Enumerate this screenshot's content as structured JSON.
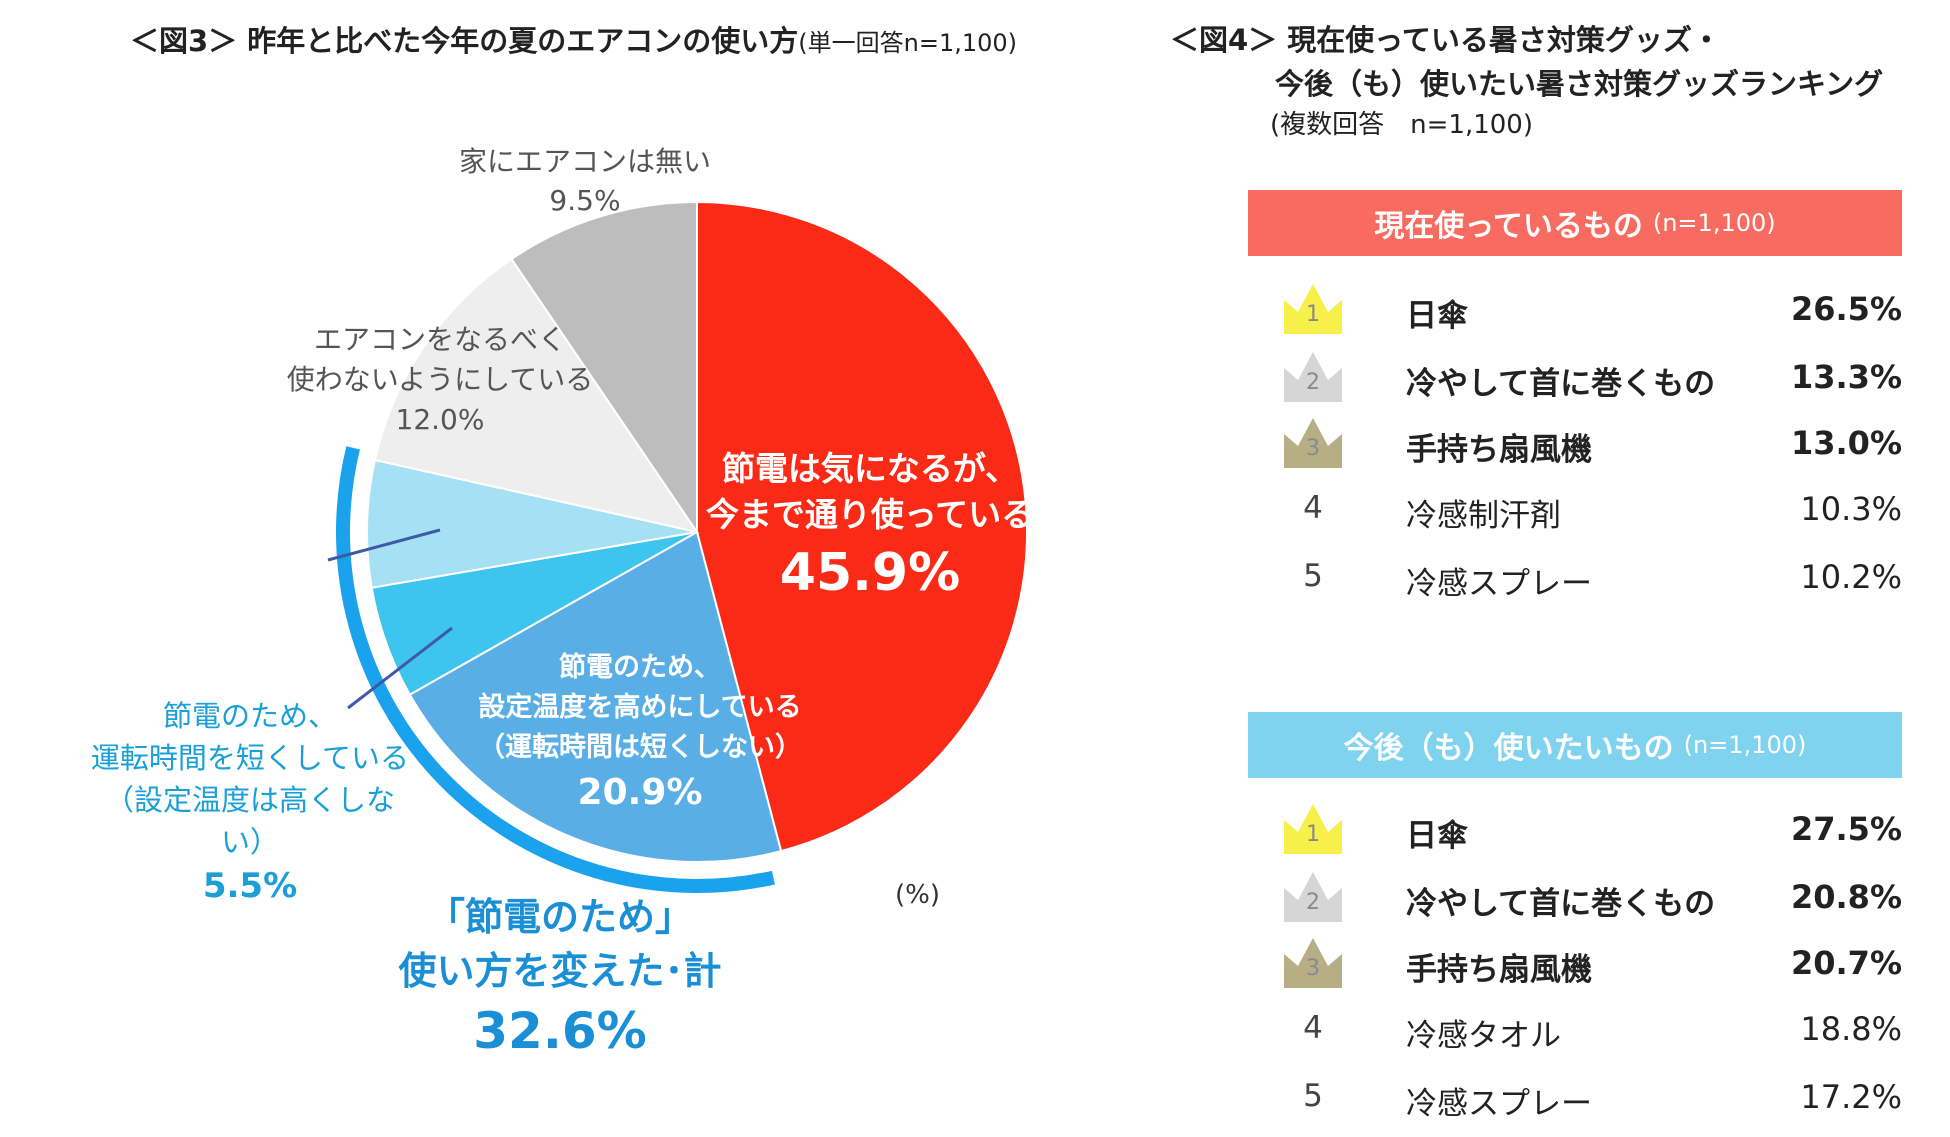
{
  "fig3": {
    "title": "＜図3＞ 昨年と比べた今年の夏のエアコンの使い方",
    "subtitle": "(単一回答n=1,100)",
    "unit": "(%)",
    "total_label_1": "「節電のため」",
    "total_label_2": "使い方を変えた･計",
    "total_value": "32.6%"
  },
  "chart_data": {
    "type": "pie",
    "title": "＜図3＞ 昨年と比べた今年の夏のエアコンの使い方",
    "subtitle": "(単一回答n=1,100)",
    "unit": "%",
    "direction": "clockwise-from-top",
    "slices": [
      {
        "label_lines": [
          "節電は気になるが、",
          "今まで通り使っている"
        ],
        "value": 45.9,
        "value_text": "45.9%",
        "color": "#fa2a16"
      },
      {
        "label_lines": [
          "節電のため、",
          "設定温度を高めにしている",
          "（運転時間は短くしない）"
        ],
        "value": 20.9,
        "value_text": "20.9%",
        "color": "#5aaee6"
      },
      {
        "label_lines": [
          "節電のため、",
          "運転時間を短くしている",
          "（設定温度は高くしない）"
        ],
        "value": 5.5,
        "value_text": "5.5%",
        "color": "#3dc4ef"
      },
      {
        "label_lines": [],
        "value": 6.2,
        "value_text": "",
        "color": "#a6e0f5"
      },
      {
        "label_lines": [
          "エアコンをなるべく",
          "使わないようにしている"
        ],
        "value": 12.0,
        "value_text": "12.0%",
        "color": "#eeeeee"
      },
      {
        "label_lines": [
          "家にエアコンは無い"
        ],
        "value": 9.5,
        "value_text": "9.5%",
        "color": "#bdbdbd"
      }
    ]
  },
  "fig4": {
    "title_line1": "＜図4＞ 現在使っている暑さ対策グッズ・",
    "title_line2": "今後（も）使いたい暑さ対策グッズランキング",
    "subtitle": "(複数回答　n=1,100)",
    "current": {
      "header": "現在使っているもの",
      "n": "(n=1,100)",
      "color": "#f86b60",
      "rows": [
        {
          "rank": "1",
          "item": "日傘",
          "value": "26.5%"
        },
        {
          "rank": "2",
          "item": "冷やして首に巻くもの",
          "value": "13.3%"
        },
        {
          "rank": "3",
          "item": "手持ち扇風機",
          "value": "13.0%"
        },
        {
          "rank": "4",
          "item": "冷感制汗剤",
          "value": "10.3%"
        },
        {
          "rank": "5",
          "item": "冷感スプレー",
          "value": "10.2%"
        }
      ]
    },
    "future": {
      "header": "今後（も）使いたいもの",
      "n": "(n=1,100)",
      "color": "#7fd3ee",
      "rows": [
        {
          "rank": "1",
          "item": "日傘",
          "value": "27.5%"
        },
        {
          "rank": "2",
          "item": "冷やして首に巻くもの",
          "value": "20.8%"
        },
        {
          "rank": "3",
          "item": "手持ち扇風機",
          "value": "20.7%"
        },
        {
          "rank": "4",
          "item": "冷感タオル",
          "value": "18.8%"
        },
        {
          "rank": "5",
          "item": "冷感スプレー",
          "value": "17.2%"
        }
      ]
    },
    "crown_colors": [
      "#f7ef4a",
      "#d6d6d6",
      "#b8ae86"
    ]
  }
}
